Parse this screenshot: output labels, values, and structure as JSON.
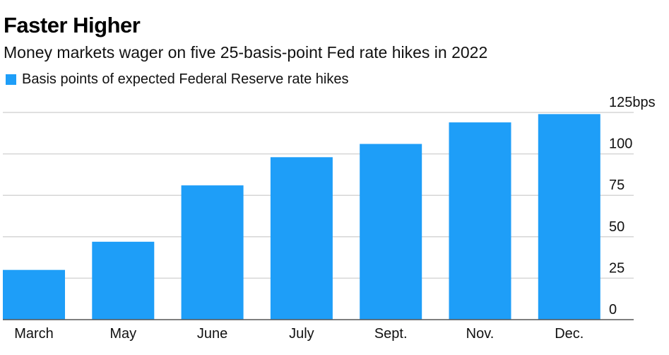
{
  "chart_data": {
    "type": "bar",
    "title": "Faster Higher",
    "subtitle": "Money markets wager on five 25-basis-point Fed rate hikes in 2022",
    "legend": "Basis points of expected Federal Reserve rate hikes",
    "series": [
      {
        "name": "Basis points of expected Federal Reserve rate hikes",
        "color": "#1E9EF8",
        "values": [
          30,
          47,
          81,
          98,
          106,
          119,
          124
        ]
      }
    ],
    "categories": [
      "March",
      "May",
      "June",
      "July",
      "Sept.",
      "Nov.",
      "Dec."
    ],
    "yticks": [
      0,
      25,
      50,
      75,
      100,
      125
    ],
    "ytick_labels": [
      "0",
      "25",
      "50",
      "75",
      "100",
      "125bps"
    ],
    "ylim": [
      0,
      125
    ],
    "xlabel": "",
    "ylabel": "",
    "grid": true,
    "axis_side": "right"
  }
}
